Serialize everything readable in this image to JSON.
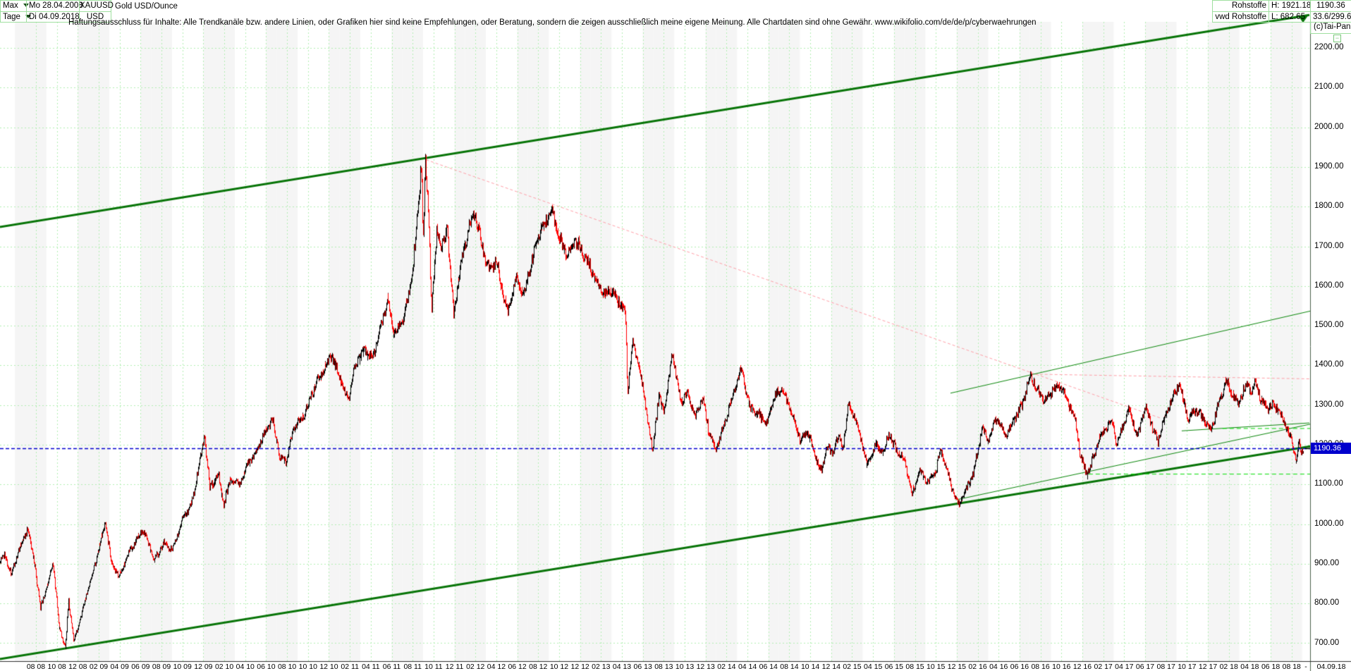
{
  "header": {
    "range_selector": "Max",
    "period_selector": "Tage",
    "start_date": "Mo 28.04.2008",
    "end_date": "Di 04.09.2018",
    "symbol": "XAUUSD",
    "currency": "USD",
    "instrument_name": "Gold USD/Ounce",
    "disclaimer": "Haftungsausschluss für Inhalte: Alle Trendkanäle bzw. andere Linien, oder Grafiken hier sind keine Empfehlungen, oder Beratung, sondern die zeigen ausschließlich meine eigene Meinung. Alle Chartdaten sind ohne Gewähr.  www.wikifolio.com/de/de/p/cyberwaehrungen",
    "feed_line1": "Rohstoffe",
    "feed_line2": "vwd Rohstoffe",
    "high_label": "H: 1921.18",
    "low_label": "L: 682.65",
    "last_value": "1190.36",
    "range_info": "33.6/299.6",
    "copyright": "(c)Tai-Pan",
    "collapse_glyph": "−"
  },
  "chart_data": {
    "type": "candlestick",
    "title": "Gold USD/Ounce",
    "symbol": "XAUUSD",
    "period_high": 1921.18,
    "period_low": 682.65,
    "last_price": 1190.36,
    "last_price_label": "1190.36",
    "y_axis": {
      "min": 700,
      "max": 2200,
      "step": 100,
      "side": "right"
    },
    "x_axis": {
      "labels": [
        "08 08",
        "10 08",
        "12 08",
        "02 09",
        "04 09",
        "06 09",
        "08 09",
        "10 09",
        "12 09",
        "02 10",
        "04 10",
        "06 10",
        "08 10",
        "10 10",
        "12 10",
        "02 11",
        "04 11",
        "06 11",
        "08 11",
        "10 11",
        "12 11",
        "02 12",
        "04 12",
        "06 12",
        "08 12",
        "10 12",
        "12 12",
        "02 13",
        "04 13",
        "06 13",
        "08 13",
        "10 13",
        "12 13",
        "02 14",
        "04 14",
        "06 14",
        "08 14",
        "10 14",
        "12 14",
        "02 15",
        "04 15",
        "06 15",
        "08 15",
        "10 15",
        "12 15",
        "02 16",
        "04 16",
        "06 16",
        "08 16",
        "10 16",
        "12 16",
        "02 17",
        "04 17",
        "06 17",
        "08 17",
        "10 17",
        "12 17",
        "02 18",
        "04 18",
        "06 18",
        "08 18"
      ],
      "first_label_month_index": 4,
      "label_step_months": 2,
      "separator": "-",
      "end_label": "04.09.18"
    },
    "series_note": "monthly anchors [months since 2008-04, price USD/oz]",
    "anchors": [
      [
        0,
        890
      ],
      [
        0.6,
        905
      ],
      [
        1,
        925
      ],
      [
        1.6,
        872
      ],
      [
        2.3,
        930
      ],
      [
        3.2,
        986
      ],
      [
        3.8,
        912
      ],
      [
        4.4,
        790
      ],
      [
        5,
        838
      ],
      [
        5.6,
        905
      ],
      [
        6.2,
        742
      ],
      [
        6.8,
        683
      ],
      [
        7.1,
        808
      ],
      [
        7.6,
        705
      ],
      [
        8.2,
        760
      ],
      [
        8.8,
        820
      ],
      [
        9.5,
        885
      ],
      [
        10.6,
        1004
      ],
      [
        11.2,
        905
      ],
      [
        11.9,
        868
      ],
      [
        12.8,
        925
      ],
      [
        13.4,
        950
      ],
      [
        14.2,
        988
      ],
      [
        15.3,
        908
      ],
      [
        16.2,
        955
      ],
      [
        17,
        935
      ],
      [
        18,
        1010
      ],
      [
        19,
        1065
      ],
      [
        20.1,
        1224
      ],
      [
        20.6,
        1090
      ],
      [
        21.4,
        1125
      ],
      [
        21.9,
        1048
      ],
      [
        22.6,
        1115
      ],
      [
        23.4,
        1100
      ],
      [
        24.2,
        1150
      ],
      [
        25,
        1185
      ],
      [
        26,
        1240
      ],
      [
        26.6,
        1262
      ],
      [
        27.3,
        1165
      ],
      [
        27.9,
        1158
      ],
      [
        28.6,
        1245
      ],
      [
        29.6,
        1275
      ],
      [
        30.6,
        1345
      ],
      [
        31.6,
        1395
      ],
      [
        32.2,
        1425
      ],
      [
        33,
        1368
      ],
      [
        33.8,
        1312
      ],
      [
        34.6,
        1410
      ],
      [
        35.4,
        1438
      ],
      [
        36.2,
        1420
      ],
      [
        37,
        1505
      ],
      [
        37.6,
        1565
      ],
      [
        38.2,
        1478
      ],
      [
        39,
        1512
      ],
      [
        39.8,
        1598
      ],
      [
        40.4,
        1760
      ],
      [
        40.8,
        1908
      ],
      [
        41,
        1728
      ],
      [
        41.2,
        1920
      ],
      [
        41.5,
        1780
      ],
      [
        41.8,
        1542
      ],
      [
        42.3,
        1742
      ],
      [
        42.8,
        1700
      ],
      [
        43.3,
        1745
      ],
      [
        43.9,
        1528
      ],
      [
        44.5,
        1640
      ],
      [
        45.2,
        1730
      ],
      [
        45.9,
        1788
      ],
      [
        46.6,
        1700
      ],
      [
        47.3,
        1640
      ],
      [
        48,
        1662
      ],
      [
        48.6,
        1578
      ],
      [
        49.1,
        1532
      ],
      [
        49.8,
        1620
      ],
      [
        50.6,
        1580
      ],
      [
        51.4,
        1665
      ],
      [
        52.2,
        1740
      ],
      [
        53.3,
        1792
      ],
      [
        54,
        1720
      ],
      [
        54.7,
        1680
      ],
      [
        55.4,
        1715
      ],
      [
        56.1,
        1693
      ],
      [
        56.8,
        1655
      ],
      [
        57.6,
        1610
      ],
      [
        58.3,
        1580
      ],
      [
        59,
        1590
      ],
      [
        59.9,
        1552
      ],
      [
        60.3,
        1532
      ],
      [
        60.55,
        1340
      ],
      [
        61,
        1465
      ],
      [
        61.6,
        1400
      ],
      [
        62.3,
        1290
      ],
      [
        62.9,
        1183
      ],
      [
        63.5,
        1320
      ],
      [
        64,
        1283
      ],
      [
        64.8,
        1432
      ],
      [
        65.6,
        1310
      ],
      [
        66.3,
        1328
      ],
      [
        67,
        1272
      ],
      [
        67.7,
        1320
      ],
      [
        68.3,
        1232
      ],
      [
        68.9,
        1184
      ],
      [
        69.8,
        1255
      ],
      [
        70.6,
        1330
      ],
      [
        71.4,
        1390
      ],
      [
        72.2,
        1292
      ],
      [
        73,
        1278
      ],
      [
        73.8,
        1250
      ],
      [
        74.6,
        1325
      ],
      [
        75.3,
        1340
      ],
      [
        76.2,
        1280
      ],
      [
        77,
        1216
      ],
      [
        77.8,
        1230
      ],
      [
        78.6,
        1160
      ],
      [
        79.1,
        1134
      ],
      [
        79.6,
        1200
      ],
      [
        80.1,
        1175
      ],
      [
        80.6,
        1222
      ],
      [
        81.1,
        1190
      ],
      [
        81.6,
        1302
      ],
      [
        82.4,
        1260
      ],
      [
        83,
        1200
      ],
      [
        83.4,
        1145
      ],
      [
        84.2,
        1200
      ],
      [
        85,
        1180
      ],
      [
        85.5,
        1228
      ],
      [
        86.3,
        1180
      ],
      [
        87,
        1162
      ],
      [
        87.7,
        1075
      ],
      [
        88.4,
        1135
      ],
      [
        89.2,
        1105
      ],
      [
        90,
        1138
      ],
      [
        90.4,
        1188
      ],
      [
        91,
        1140
      ],
      [
        91.6,
        1085
      ],
      [
        92.1,
        1048
      ],
      [
        92.8,
        1085
      ],
      [
        93.6,
        1128
      ],
      [
        94.4,
        1245
      ],
      [
        95,
        1210
      ],
      [
        95.8,
        1272
      ],
      [
        96.6,
        1225
      ],
      [
        97.4,
        1260
      ],
      [
        98.2,
        1300
      ],
      [
        98.8,
        1358
      ],
      [
        99.1,
        1374
      ],
      [
        99.8,
        1330
      ],
      [
        100.5,
        1312
      ],
      [
        101.2,
        1342
      ],
      [
        101.9,
        1348
      ],
      [
        102.6,
        1310
      ],
      [
        103.3,
        1265
      ],
      [
        103.8,
        1172
      ],
      [
        104.4,
        1125
      ],
      [
        104.9,
        1160
      ],
      [
        105.6,
        1218
      ],
      [
        106.3,
        1245
      ],
      [
        106.9,
        1260
      ],
      [
        107.2,
        1198
      ],
      [
        107.9,
        1250
      ],
      [
        108.5,
        1292
      ],
      [
        109.2,
        1218
      ],
      [
        109.7,
        1268
      ],
      [
        110.1,
        1292
      ],
      [
        110.7,
        1240
      ],
      [
        111.2,
        1208
      ],
      [
        111.9,
        1268
      ],
      [
        112.6,
        1320
      ],
      [
        113.2,
        1354
      ],
      [
        113.8,
        1300
      ],
      [
        114.1,
        1264
      ],
      [
        114.7,
        1288
      ],
      [
        115.4,
        1272
      ],
      [
        116,
        1250
      ],
      [
        116.3,
        1238
      ],
      [
        116.9,
        1292
      ],
      [
        117.7,
        1362
      ],
      [
        118.3,
        1330
      ],
      [
        118.9,
        1306
      ],
      [
        119.4,
        1340
      ],
      [
        119.8,
        1352
      ],
      [
        120.2,
        1332
      ],
      [
        120.5,
        1362
      ],
      [
        121.1,
        1310
      ],
      [
        121.7,
        1292
      ],
      [
        122.3,
        1302
      ],
      [
        122.9,
        1278
      ],
      [
        123.4,
        1252
      ],
      [
        123.9,
        1215
      ],
      [
        124.4,
        1163
      ],
      [
        124.7,
        1205
      ],
      [
        124.9,
        1182
      ],
      [
        125.1,
        1190.36
      ]
    ],
    "trendlines": [
      {
        "name": "channel-upper",
        "style": "solid",
        "width": 3,
        "color": "#077407",
        "m1": 0.566,
        "p1": 1749,
        "m2": 125.7,
        "p2": 2283,
        "arrow_end": true
      },
      {
        "name": "channel-lower",
        "style": "solid",
        "width": 3,
        "color": "#077407",
        "m1": 0.566,
        "p1": 660,
        "m2": 125.8,
        "p2": 1196
      },
      {
        "name": "downtrend-from-2011-top",
        "style": "dashed",
        "width": 1,
        "color": "#ff9fa8",
        "m1": 41.3,
        "p1": 1918,
        "m2": 111.6,
        "p2": 1266
      },
      {
        "name": "flat-resistance-2016-2018",
        "style": "dashed",
        "width": 1,
        "color": "#ff9fa8",
        "m1": 99.0,
        "p1": 1378,
        "m2": 125.8,
        "p2": 1366
      },
      {
        "name": "wedge-upper",
        "style": "solid",
        "width": 1,
        "color": "#0a870a",
        "m1": 91.4,
        "p1": 1330,
        "m2": 125.8,
        "p2": 1537
      },
      {
        "name": "wedge-lower",
        "style": "solid",
        "width": 1,
        "color": "#0a870a",
        "m1": 91.9,
        "p1": 1061,
        "m2": 125.8,
        "p2": 1252
      },
      {
        "name": "minor-resistance",
        "style": "solid",
        "width": 1,
        "color": "#0a870a",
        "m1": 113.5,
        "p1": 1235,
        "m2": 125.7,
        "p2": 1255
      },
      {
        "name": "support-dashed-1241",
        "style": "dashed-bright",
        "width": 1,
        "color": "#00dd00",
        "m1": 117.4,
        "p1": 1241,
        "m2": 125.8,
        "p2": 1241
      },
      {
        "name": "support-dashed-1126",
        "style": "dashed-bright",
        "width": 1,
        "color": "#00dd00",
        "m1": 104.6,
        "p1": 1126,
        "m2": 125.8,
        "p2": 1126
      },
      {
        "name": "last-price-line",
        "style": "dashed-blue",
        "width": 1.5,
        "color": "#0000cd",
        "m1": 0.566,
        "p1": 1190.36,
        "m2": 125.8,
        "p2": 1190.36
      }
    ],
    "legend": null,
    "grid": {
      "h_step": 100,
      "v_step_months": 2,
      "band_months": [
        12,
        1,
        2,
        6,
        7,
        8
      ]
    }
  },
  "colors": {
    "up_candle": "#000000",
    "down_candle": "#ff0000",
    "grid_green": "#b2efb2",
    "band_gray": "#f5f5f5",
    "cell_border": "#9fdf9f",
    "axis_dark": "#4c614c",
    "bottom_axis": "#2f2f2f",
    "tag_bg": "#0000cd"
  }
}
